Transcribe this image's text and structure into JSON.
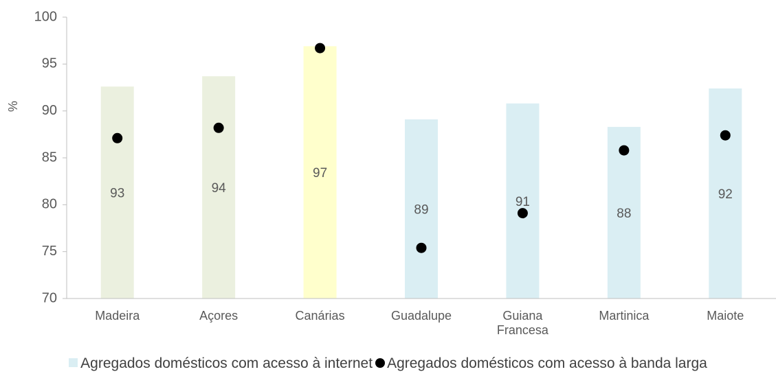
{
  "chart_data": {
    "type": "bar",
    "y_label": "%",
    "categories": [
      "Madeira",
      "Açores",
      "Canárias",
      "Guadalupe",
      "Guiana Francesa",
      "Martinica",
      "Maiote"
    ],
    "series": [
      {
        "name": "Agregados domésticos com acesso à internet",
        "type": "bar",
        "color": "#daeef3",
        "colors": [
          "#ebf0df",
          "#ebf0df",
          "#ffffcc",
          "#daeef3",
          "#daeef3",
          "#daeef3",
          "#daeef3"
        ],
        "values": [
          92.6,
          93.7,
          96.9,
          89.1,
          90.8,
          88.3,
          92.4
        ],
        "value_labels": [
          "93",
          "94",
          "97",
          "89",
          "91",
          "88",
          "92"
        ]
      },
      {
        "name": "Agregados domésticos com acesso à banda larga",
        "type": "scatter",
        "color": "#000000",
        "values": [
          87.1,
          88.2,
          96.7,
          75.4,
          79.1,
          85.8,
          87.4
        ]
      }
    ],
    "ylim": [
      70,
      100
    ],
    "yticks": [
      70,
      75,
      80,
      85,
      90,
      95,
      100
    ],
    "grid": false
  }
}
